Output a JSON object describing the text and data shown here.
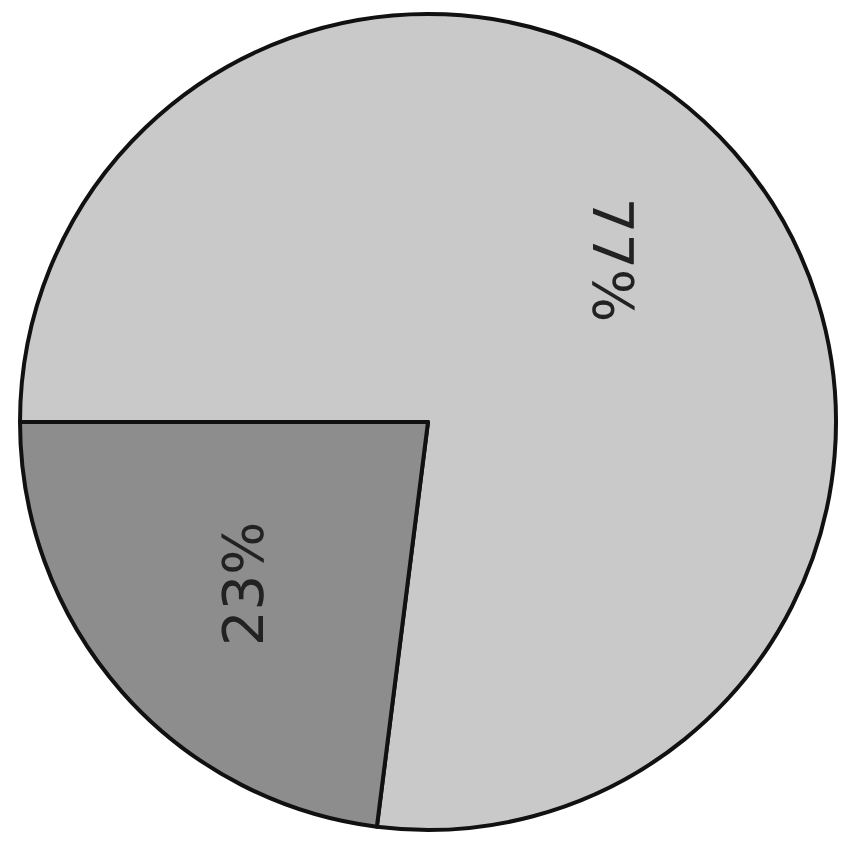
{
  "chart_data": {
    "type": "pie",
    "categories": [
      null,
      null
    ],
    "values": [
      77,
      23
    ],
    "colors": [
      "#c9c9c9",
      "#8d8d8d"
    ],
    "value_labels": [
      "77%",
      "23%"
    ]
  }
}
